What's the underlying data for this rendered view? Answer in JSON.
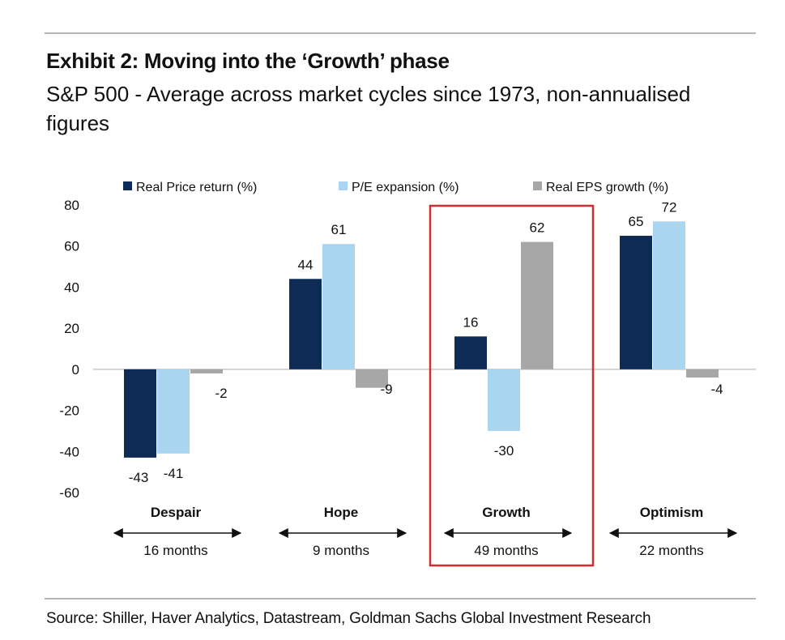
{
  "header": {
    "title": "Exhibit 2: Moving into the ‘Growth’ phase",
    "subtitle": "S&P 500 - Average across market cycles since 1973, non-annualised figures"
  },
  "footer": {
    "source": "Source: Shiller, Haver Analytics, Datastream, Goldman Sachs Global Investment Research"
  },
  "colors": {
    "price": "#0d2b55",
    "pe": "#aad5f1",
    "eps": "#a7a7a7",
    "highlight": "#d32d2d"
  },
  "chart_data": {
    "type": "bar",
    "title": "Exhibit 2: Moving into the ‘Growth’ phase",
    "categories": [
      "Despair",
      "Hope",
      "Growth",
      "Optimism"
    ],
    "durations": [
      "16 months",
      "9 months",
      "49 months",
      "22 months"
    ],
    "series": [
      {
        "name": "Real Price return (%)",
        "values": [
          -43,
          44,
          16,
          65
        ],
        "labels": [
          "-43",
          "44",
          "16",
          "65"
        ]
      },
      {
        "name": "P/E expansion (%)",
        "values": [
          -41,
          61,
          -30,
          72
        ],
        "labels": [
          "-41",
          "61",
          "-30",
          "72"
        ]
      },
      {
        "name": "Real EPS growth (%)",
        "values": [
          -2,
          -9,
          62,
          -4
        ],
        "labels": [
          "-2",
          "-9",
          "62",
          "-4"
        ]
      }
    ],
    "yticks": [
      "80",
      "60",
      "40",
      "20",
      "0",
      "-20",
      "-40",
      "-60"
    ],
    "ylim": [
      -60,
      80
    ],
    "xlabel": "",
    "ylabel": "",
    "legend": "top",
    "highlighted_category": "Growth"
  }
}
